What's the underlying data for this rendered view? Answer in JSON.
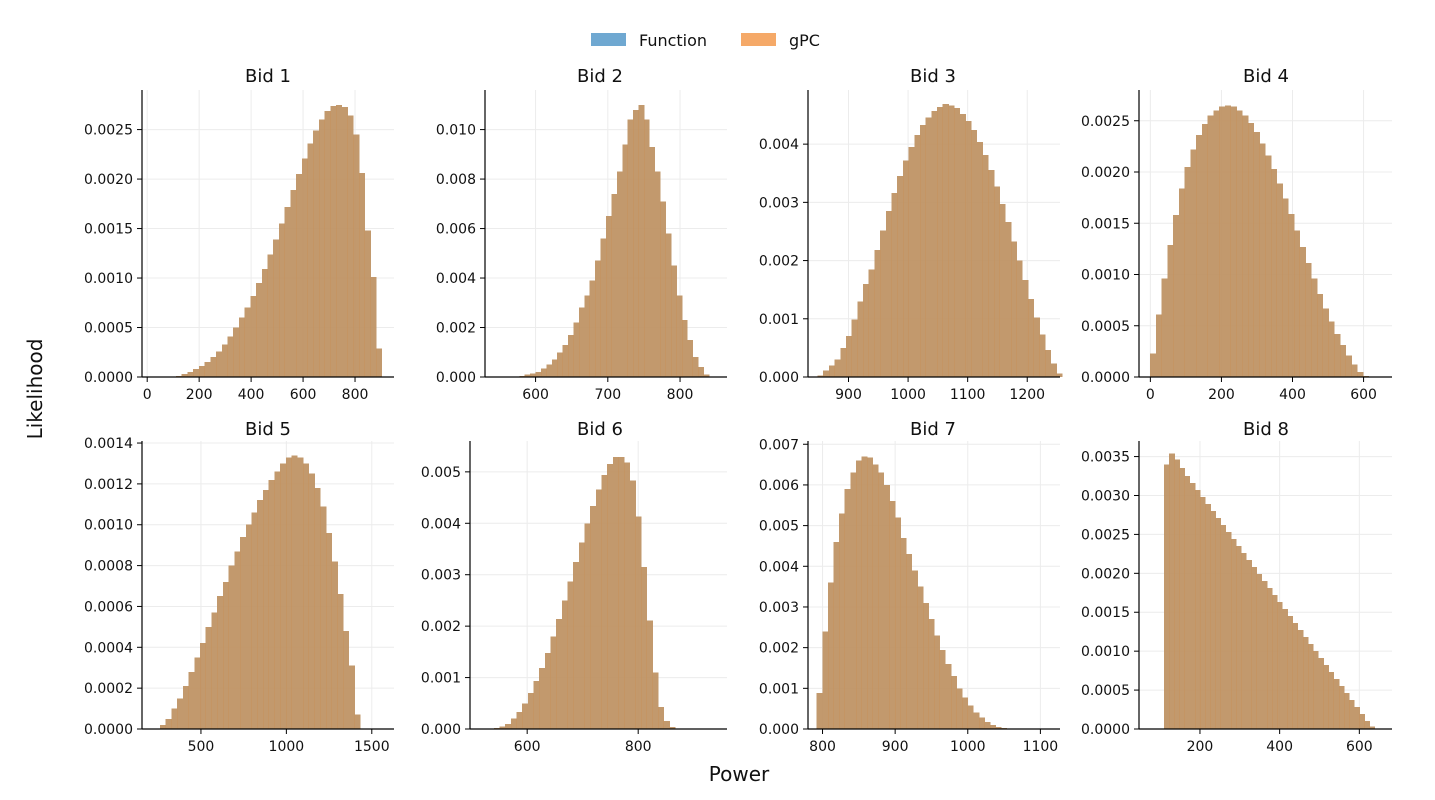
{
  "figure": {
    "xlabel": "Power",
    "ylabel": "Likelihood",
    "legend": [
      {
        "label": "Function",
        "color": "#6fa8d1"
      },
      {
        "label": "gPC",
        "color": "#f5a968"
      }
    ],
    "overlap_color": "#c79158",
    "legend_position": "top-center"
  },
  "chart_data": [
    {
      "type": "bar",
      "title": "Bid 1",
      "xlim": [
        -20,
        950
      ],
      "ylim": [
        0,
        0.0029
      ],
      "xticks": [
        0,
        200,
        400,
        600,
        800
      ],
      "yticks": [
        0.0,
        0.0005,
        0.001,
        0.0015,
        0.002,
        0.0025
      ],
      "ytick_decimals": 4,
      "bin_width": 22,
      "bins_start": 111,
      "series": [
        {
          "name": "Function",
          "values": [
            1e-05,
            3e-05,
            5e-05,
            8e-05,
            0.00011,
            0.00015,
            0.0002,
            0.00026,
            0.00033,
            0.00041,
            0.0005,
            0.0006,
            0.0007,
            0.00082,
            0.00095,
            0.00109,
            0.00124,
            0.00139,
            0.00155,
            0.00172,
            0.00189,
            0.00205,
            0.00221,
            0.00236,
            0.00249,
            0.0026,
            0.00269,
            0.00274,
            0.00275,
            0.00273,
            0.00264,
            0.00245,
            0.00206,
            0.00148,
            0.00101,
            0.00029
          ]
        },
        {
          "name": "gPC",
          "values": [
            1e-05,
            3e-05,
            5e-05,
            8e-05,
            0.00011,
            0.00015,
            0.0002,
            0.00026,
            0.00033,
            0.00041,
            0.0005,
            0.0006,
            0.0007,
            0.00082,
            0.00095,
            0.00109,
            0.00124,
            0.00139,
            0.00155,
            0.00172,
            0.00189,
            0.00205,
            0.00221,
            0.00236,
            0.00249,
            0.0026,
            0.00269,
            0.00274,
            0.00275,
            0.00273,
            0.00264,
            0.00245,
            0.00206,
            0.00148,
            0.00101,
            0.00029
          ]
        }
      ]
    },
    {
      "type": "bar",
      "title": "Bid 2",
      "xlim": [
        530,
        865
      ],
      "ylim": [
        0,
        0.0116
      ],
      "xticks": [
        600,
        700,
        800
      ],
      "yticks": [
        0.0,
        0.002,
        0.004,
        0.006,
        0.008,
        0.01
      ],
      "ytick_decimals": 3,
      "bin_width": 7.5,
      "bins_start": 570,
      "series": [
        {
          "name": "Function",
          "values": [
            3e-05,
            5e-05,
            0.0001,
            0.00015,
            0.0002,
            0.00035,
            0.0005,
            0.0007,
            0.001,
            0.0013,
            0.0017,
            0.0022,
            0.0028,
            0.0033,
            0.0039,
            0.0047,
            0.0056,
            0.0065,
            0.0074,
            0.0083,
            0.0094,
            0.0104,
            0.0108,
            0.011,
            0.0104,
            0.0093,
            0.0083,
            0.0071,
            0.0058,
            0.0045,
            0.0033,
            0.0023,
            0.0015,
            0.0008,
            0.0004,
            0.0001,
            3e-05
          ]
        },
        {
          "name": "gPC",
          "values": [
            3e-05,
            5e-05,
            0.0001,
            0.00015,
            0.0002,
            0.00035,
            0.0005,
            0.0007,
            0.001,
            0.0013,
            0.0017,
            0.0022,
            0.0028,
            0.0033,
            0.0039,
            0.0047,
            0.0056,
            0.0065,
            0.0074,
            0.0083,
            0.0094,
            0.0104,
            0.0108,
            0.011,
            0.0104,
            0.0093,
            0.0083,
            0.0071,
            0.0058,
            0.0045,
            0.0033,
            0.0023,
            0.0015,
            0.0008,
            0.0004,
            0.0001,
            3e-05
          ]
        }
      ]
    },
    {
      "type": "bar",
      "title": "Bid 3",
      "xlim": [
        832,
        1255
      ],
      "ylim": [
        0,
        0.00493
      ],
      "xticks": [
        900,
        1000,
        1100,
        1200
      ],
      "yticks": [
        0.0,
        0.001,
        0.002,
        0.003,
        0.004
      ],
      "ytick_decimals": 3,
      "bin_width": 9.55,
      "bins_start": 848,
      "series": [
        {
          "name": "Function",
          "values": [
            3e-05,
            0.00011,
            0.0002,
            0.0003,
            0.0005,
            0.0007,
            0.00099,
            0.0013,
            0.0016,
            0.00185,
            0.00218,
            0.00252,
            0.00285,
            0.00316,
            0.00345,
            0.00372,
            0.00395,
            0.00416,
            0.00433,
            0.00446,
            0.00457,
            0.00464,
            0.00469,
            0.00466,
            0.00462,
            0.00452,
            0.0044,
            0.00424,
            0.00404,
            0.00381,
            0.00356,
            0.00327,
            0.00297,
            0.00266,
            0.00233,
            0.002,
            0.00167,
            0.00134,
            0.00102,
            0.00073,
            0.00046,
            0.00023,
            6e-05
          ]
        },
        {
          "name": "gPC",
          "values": [
            3e-05,
            0.00011,
            0.0002,
            0.0003,
            0.0005,
            0.0007,
            0.00099,
            0.0013,
            0.0016,
            0.00185,
            0.00218,
            0.00252,
            0.00285,
            0.00316,
            0.00345,
            0.00372,
            0.00395,
            0.00416,
            0.00433,
            0.00446,
            0.00457,
            0.00464,
            0.00469,
            0.00466,
            0.00462,
            0.00452,
            0.0044,
            0.00424,
            0.00404,
            0.00381,
            0.00356,
            0.00327,
            0.00297,
            0.00266,
            0.00233,
            0.002,
            0.00167,
            0.00134,
            0.00102,
            0.00073,
            0.00046,
            0.00023,
            6e-05
          ]
        }
      ]
    },
    {
      "type": "bar",
      "title": "Bid 4",
      "xlim": [
        -32,
        680
      ],
      "ylim": [
        0,
        0.0028
      ],
      "xticks": [
        0,
        200,
        400,
        600
      ],
      "yticks": [
        0.0,
        0.0005,
        0.001,
        0.0015,
        0.002,
        0.0025
      ],
      "ytick_decimals": 4,
      "bin_width": 16.2,
      "bins_start": -1,
      "series": [
        {
          "name": "Function",
          "values": [
            0.00023,
            0.00061,
            0.00096,
            0.00129,
            0.00158,
            0.00184,
            0.00205,
            0.00222,
            0.00236,
            0.00247,
            0.00255,
            0.0026,
            0.00264,
            0.00265,
            0.00264,
            0.0026,
            0.00255,
            0.00248,
            0.00239,
            0.00228,
            0.00216,
            0.00203,
            0.00189,
            0.00174,
            0.00159,
            0.00143,
            0.00127,
            0.00111,
            0.00096,
            0.00081,
            0.00067,
            0.00054,
            0.00042,
            0.00031,
            0.00021,
            0.00012,
            5e-05,
            1e-05
          ]
        },
        {
          "name": "gPC",
          "values": [
            0.00023,
            0.00061,
            0.00096,
            0.00129,
            0.00158,
            0.00184,
            0.00205,
            0.00222,
            0.00236,
            0.00247,
            0.00255,
            0.0026,
            0.00264,
            0.00265,
            0.00264,
            0.0026,
            0.00255,
            0.00248,
            0.00239,
            0.00228,
            0.00216,
            0.00203,
            0.00189,
            0.00174,
            0.00159,
            0.00143,
            0.00127,
            0.00111,
            0.00096,
            0.00081,
            0.00067,
            0.00054,
            0.00042,
            0.00031,
            0.00021,
            0.00012,
            5e-05,
            1e-05
          ]
        }
      ]
    },
    {
      "type": "bar",
      "title": "Bid 5",
      "xlim": [
        155,
        1630
      ],
      "ylim": [
        0,
        0.00141
      ],
      "xticks": [
        500,
        1000,
        1500
      ],
      "yticks": [
        0.0,
        0.0002,
        0.0004,
        0.0006,
        0.0008,
        0.001,
        0.0012,
        0.0014
      ],
      "ytick_decimals": 4,
      "bin_width": 33.5,
      "bins_start": 260,
      "series": [
        {
          "name": "Function",
          "values": [
            2e-05,
            5e-05,
            0.0001,
            0.00015,
            0.00021,
            0.00028,
            0.00035,
            0.00042,
            0.0005,
            0.00057,
            0.00065,
            0.00072,
            0.0008,
            0.00087,
            0.00094,
            0.001,
            0.00106,
            0.00112,
            0.00117,
            0.00122,
            0.00126,
            0.0013,
            0.00133,
            0.00134,
            0.00133,
            0.0013,
            0.00125,
            0.00118,
            0.00109,
            0.00096,
            0.00082,
            0.00066,
            0.00048,
            0.00031,
            7e-05
          ]
        },
        {
          "name": "gPC",
          "values": [
            2e-05,
            5e-05,
            0.0001,
            0.00015,
            0.00021,
            0.00028,
            0.00035,
            0.00042,
            0.0005,
            0.00057,
            0.00065,
            0.00072,
            0.0008,
            0.00087,
            0.00094,
            0.001,
            0.00106,
            0.00112,
            0.00117,
            0.00122,
            0.00126,
            0.0013,
            0.00133,
            0.00134,
            0.00133,
            0.0013,
            0.00125,
            0.00118,
            0.00109,
            0.00096,
            0.00082,
            0.00066,
            0.00048,
            0.00031,
            7e-05
          ]
        }
      ]
    },
    {
      "type": "bar",
      "title": "Bid 6",
      "xlim": [
        497,
        960
      ],
      "ylim": [
        0,
        0.0056
      ],
      "xticks": [
        600,
        800
      ],
      "yticks": [
        0.0,
        0.001,
        0.002,
        0.003,
        0.004,
        0.005
      ],
      "ytick_decimals": 3,
      "bin_width": 10.2,
      "bins_start": 540,
      "series": [
        {
          "name": "Function",
          "values": [
            2e-05,
            5e-05,
            0.0001,
            0.0002,
            0.00033,
            0.0005,
            0.0007,
            0.00093,
            0.00119,
            0.00148,
            0.0018,
            0.00214,
            0.0025,
            0.00287,
            0.00325,
            0.00363,
            0.004,
            0.00434,
            0.00466,
            0.00494,
            0.00515,
            0.00529,
            0.00529,
            0.00518,
            0.00483,
            0.00413,
            0.00315,
            0.00211,
            0.0011,
            0.00043,
            0.00016,
            4e-05
          ]
        },
        {
          "name": "gPC",
          "values": [
            2e-05,
            5e-05,
            0.0001,
            0.0002,
            0.00033,
            0.0005,
            0.0007,
            0.00093,
            0.00119,
            0.00148,
            0.0018,
            0.00214,
            0.0025,
            0.00287,
            0.00325,
            0.00363,
            0.004,
            0.00434,
            0.00466,
            0.00494,
            0.00515,
            0.00529,
            0.00529,
            0.00518,
            0.00483,
            0.00413,
            0.00315,
            0.00211,
            0.0011,
            0.00043,
            0.00016,
            4e-05
          ]
        }
      ]
    },
    {
      "type": "bar",
      "title": "Bid 7",
      "xlim": [
        780,
        1127
      ],
      "ylim": [
        0,
        0.00708
      ],
      "xticks": [
        800,
        900,
        1000,
        1100
      ],
      "yticks": [
        0.0,
        0.001,
        0.002,
        0.003,
        0.004,
        0.005,
        0.006,
        0.007
      ],
      "ytick_decimals": 3,
      "bin_width": 7.7,
      "bins_start": 792,
      "series": [
        {
          "name": "Function",
          "values": [
            0.00088,
            0.0024,
            0.0036,
            0.0046,
            0.0053,
            0.0059,
            0.0063,
            0.0066,
            0.0067,
            0.00667,
            0.0065,
            0.0063,
            0.006,
            0.0056,
            0.0052,
            0.0047,
            0.0043,
            0.0039,
            0.0035,
            0.0031,
            0.0027,
            0.0023,
            0.00194,
            0.0016,
            0.0013,
            0.001,
            0.00078,
            0.00058,
            0.00041,
            0.00028,
            0.00017,
            0.0001,
            5e-05,
            2e-05
          ]
        },
        {
          "name": "gPC",
          "values": [
            0.00088,
            0.0024,
            0.0036,
            0.0046,
            0.0053,
            0.0059,
            0.0063,
            0.0066,
            0.0067,
            0.00667,
            0.0065,
            0.0063,
            0.006,
            0.0056,
            0.0052,
            0.0047,
            0.0043,
            0.0039,
            0.0035,
            0.0031,
            0.0027,
            0.0023,
            0.00194,
            0.0016,
            0.0013,
            0.001,
            0.00078,
            0.00058,
            0.00041,
            0.00028,
            0.00017,
            0.0001,
            5e-05,
            2e-05
          ]
        }
      ]
    },
    {
      "type": "bar",
      "title": "Bid 8",
      "xlim": [
        47,
        682
      ],
      "ylim": [
        0,
        0.0037
      ],
      "xticks": [
        200,
        400,
        600
      ],
      "yticks": [
        0.0,
        0.0005,
        0.001,
        0.0015,
        0.002,
        0.0025,
        0.003,
        0.0035
      ],
      "ytick_decimals": 4,
      "bin_width": 12.9,
      "bins_start": 110,
      "series": [
        {
          "name": "Function",
          "values": [
            0.0034,
            0.00354,
            0.00346,
            0.00335,
            0.00325,
            0.00316,
            0.00307,
            0.00298,
            0.00289,
            0.0028,
            0.00271,
            0.00262,
            0.00253,
            0.00244,
            0.00235,
            0.00226,
            0.00217,
            0.00208,
            0.00199,
            0.0019,
            0.00181,
            0.00172,
            0.00163,
            0.00154,
            0.00145,
            0.00136,
            0.00127,
            0.00118,
            0.00109,
            0.001,
            0.00091,
            0.00082,
            0.00073,
            0.00064,
            0.00055,
            0.00046,
            0.00037,
            0.00028,
            0.00019,
            0.0001,
            3e-05
          ]
        },
        {
          "name": "gPC",
          "values": [
            0.0034,
            0.00354,
            0.00346,
            0.00335,
            0.00325,
            0.00316,
            0.00307,
            0.00298,
            0.00289,
            0.0028,
            0.00271,
            0.00262,
            0.00253,
            0.00244,
            0.00235,
            0.00226,
            0.00217,
            0.00208,
            0.00199,
            0.0019,
            0.00181,
            0.00172,
            0.00163,
            0.00154,
            0.00145,
            0.00136,
            0.00127,
            0.00118,
            0.00109,
            0.001,
            0.00091,
            0.00082,
            0.00073,
            0.00064,
            0.00055,
            0.00046,
            0.00037,
            0.00028,
            0.00019,
            0.0001,
            3e-05
          ]
        }
      ]
    }
  ]
}
